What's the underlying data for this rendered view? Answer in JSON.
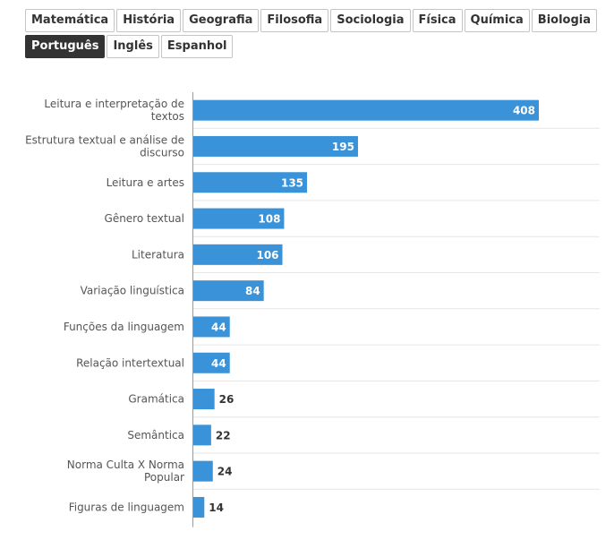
{
  "tabs": [
    {
      "label": "Matemática",
      "active": false
    },
    {
      "label": "História",
      "active": false
    },
    {
      "label": "Geografia",
      "active": false
    },
    {
      "label": "Filosofia",
      "active": false
    },
    {
      "label": "Sociologia",
      "active": false
    },
    {
      "label": "Física",
      "active": false
    },
    {
      "label": "Química",
      "active": false
    },
    {
      "label": "Biologia",
      "active": false
    },
    {
      "label": "Português",
      "active": true
    },
    {
      "label": "Inglês",
      "active": false
    },
    {
      "label": "Espanhol",
      "active": false
    }
  ],
  "colors": {
    "bar": "#3a93d8",
    "grid": "#e6e6e6",
    "axis": "#9a9a9a"
  },
  "chart_data": {
    "type": "bar",
    "orientation": "horizontal",
    "categories": [
      "Leitura e interpretação de textos",
      "Estrutura textual e análise de discurso",
      "Leitura e artes",
      "Gênero textual",
      "Literatura",
      "Variação linguística",
      "Funções da linguagem",
      "Relação intertextual",
      "Gramática",
      "Semântica",
      "Norma Culta X Norma Popular",
      "Figuras de linguagem"
    ],
    "values": [
      408,
      195,
      135,
      108,
      106,
      84,
      44,
      44,
      26,
      22,
      24,
      14
    ],
    "xlim": [
      0,
      470
    ],
    "grid": true,
    "data_labels": true
  }
}
